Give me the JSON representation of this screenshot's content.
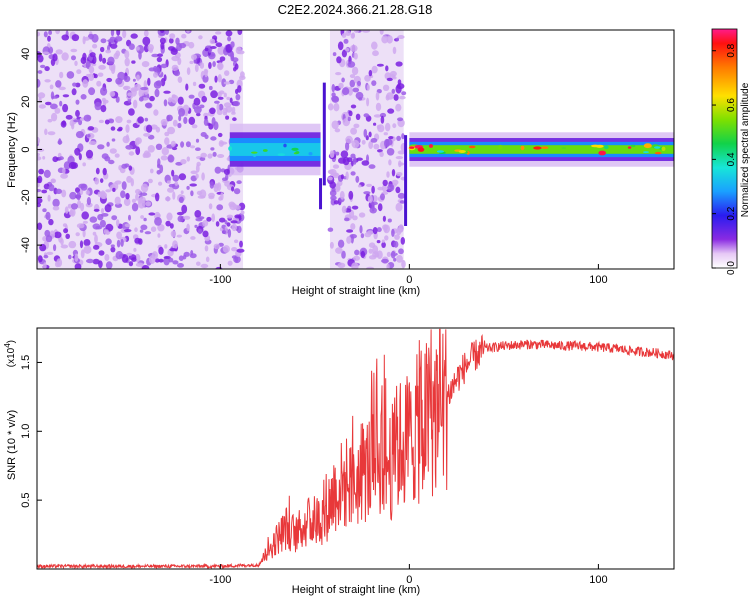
{
  "title": "C2E2.2024.366.21.28.G18",
  "chart_data": [
    {
      "type": "heatmap",
      "xlabel": "Height of straight line (km)",
      "ylabel": "Frequency (Hz)",
      "xlim": [
        -197,
        140
      ],
      "ylim": [
        -50,
        50
      ],
      "xticks": [
        -100,
        0,
        100
      ],
      "yticks": [
        -40,
        -20,
        0,
        20,
        40
      ],
      "colorbar": {
        "label": "Normalized spectral amplitude",
        "range": [
          0.0,
          0.88
        ],
        "ticks": [
          0.0,
          0.2,
          0.4,
          0.6,
          0.8
        ]
      },
      "regions": [
        {
          "name": "noise",
          "x_from": -197,
          "x_to": -88,
          "level": 0.06
        },
        {
          "name": "signal-band",
          "x_from": -95,
          "x_to": -47,
          "center_freq": 0,
          "band_halfwidth": 6,
          "peak_level": 0.55
        },
        {
          "name": "noise",
          "x_from": -42,
          "x_to": -3,
          "level": 0.06
        },
        {
          "name": "signal-band",
          "x_from": 0,
          "x_to": 140,
          "center_freq": 0,
          "band_halfwidth": 4,
          "peak_level": 0.88
        }
      ]
    },
    {
      "type": "line",
      "xlabel": "Height of straight line (km)",
      "ylabel": "SNR (10 * v/v)",
      "y_multiplier": "(x10",
      "y_multiplier_exp": "4",
      "xlim": [
        -197,
        140
      ],
      "ylim": [
        0,
        1.75
      ],
      "xticks": [
        -100,
        0,
        100
      ],
      "yticks": [
        0.5,
        1.0,
        1.5
      ],
      "ytick_labels": [
        "0.5",
        "1.0",
        "1.5"
      ],
      "series_color": "#e8383a",
      "x": [
        -197,
        -150,
        -100,
        -80,
        -75,
        -70,
        -65,
        -60,
        -55,
        -50,
        -45,
        -40,
        -35,
        -30,
        -25,
        -20,
        -15,
        -10,
        -5,
        0,
        5,
        10,
        15,
        20,
        25,
        30,
        35,
        40,
        50,
        60,
        70,
        80,
        90,
        100,
        110,
        120,
        130,
        140
      ],
      "y": [
        0.02,
        0.02,
        0.02,
        0.03,
        0.12,
        0.22,
        0.3,
        0.25,
        0.33,
        0.35,
        0.38,
        0.55,
        0.62,
        0.58,
        0.7,
        0.75,
        0.85,
        0.75,
        0.9,
        0.95,
        1.02,
        1.1,
        1.15,
        1.25,
        1.38,
        1.48,
        1.55,
        1.6,
        1.62,
        1.63,
        1.63,
        1.62,
        1.62,
        1.61,
        1.6,
        1.58,
        1.57,
        1.55
      ]
    }
  ]
}
